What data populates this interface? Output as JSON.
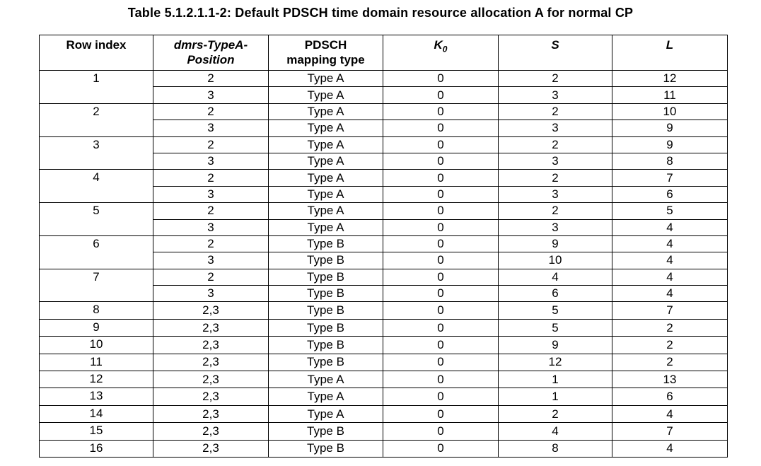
{
  "title": "Table 5.1.2.1.1-2: Default PDSCH time domain resource allocation A for normal CP",
  "headers": {
    "row_index": "Row index",
    "dmrs_line1": "dmrs-TypeA-",
    "dmrs_line2": "Position",
    "pdsch_line1": "PDSCH",
    "pdsch_line2": "mapping type",
    "k0": "K",
    "k0_sub": "0",
    "s": "S",
    "l": "L"
  },
  "rows": [
    {
      "index": "1",
      "entries": [
        {
          "dmrs": "2",
          "type": "Type A",
          "k0": "0",
          "s": "2",
          "l": "12"
        },
        {
          "dmrs": "3",
          "type": "Type A",
          "k0": "0",
          "s": "3",
          "l": "11"
        }
      ]
    },
    {
      "index": "2",
      "entries": [
        {
          "dmrs": "2",
          "type": "Type A",
          "k0": "0",
          "s": "2",
          "l": "10"
        },
        {
          "dmrs": "3",
          "type": "Type A",
          "k0": "0",
          "s": "3",
          "l": "9"
        }
      ]
    },
    {
      "index": "3",
      "entries": [
        {
          "dmrs": "2",
          "type": "Type A",
          "k0": "0",
          "s": "2",
          "l": "9"
        },
        {
          "dmrs": "3",
          "type": "Type A",
          "k0": "0",
          "s": "3",
          "l": "8"
        }
      ]
    },
    {
      "index": "4",
      "entries": [
        {
          "dmrs": "2",
          "type": "Type A",
          "k0": "0",
          "s": "2",
          "l": "7"
        },
        {
          "dmrs": "3",
          "type": "Type A",
          "k0": "0",
          "s": "3",
          "l": "6"
        }
      ]
    },
    {
      "index": "5",
      "entries": [
        {
          "dmrs": "2",
          "type": "Type A",
          "k0": "0",
          "s": "2",
          "l": "5"
        },
        {
          "dmrs": "3",
          "type": "Type A",
          "k0": "0",
          "s": "3",
          "l": "4"
        }
      ]
    },
    {
      "index": "6",
      "entries": [
        {
          "dmrs": "2",
          "type": "Type B",
          "k0": "0",
          "s": "9",
          "l": "4"
        },
        {
          "dmrs": "3",
          "type": "Type B",
          "k0": "0",
          "s": "10",
          "l": "4"
        }
      ]
    },
    {
      "index": "7",
      "entries": [
        {
          "dmrs": "2",
          "type": "Type B",
          "k0": "0",
          "s": "4",
          "l": "4"
        },
        {
          "dmrs": "3",
          "type": "Type B",
          "k0": "0",
          "s": "6",
          "l": "4"
        }
      ]
    },
    {
      "index": "8",
      "entries": [
        {
          "dmrs": "2,3",
          "type": "Type B",
          "k0": "0",
          "s": "5",
          "l": "7"
        }
      ]
    },
    {
      "index": "9",
      "entries": [
        {
          "dmrs": "2,3",
          "type": "Type B",
          "k0": "0",
          "s": "5",
          "l": "2"
        }
      ]
    },
    {
      "index": "10",
      "entries": [
        {
          "dmrs": "2,3",
          "type": "Type B",
          "k0": "0",
          "s": "9",
          "l": "2"
        }
      ]
    },
    {
      "index": "11",
      "entries": [
        {
          "dmrs": "2,3",
          "type": "Type B",
          "k0": "0",
          "s": "12",
          "l": "2"
        }
      ]
    },
    {
      "index": "12",
      "entries": [
        {
          "dmrs": "2,3",
          "type": "Type A",
          "k0": "0",
          "s": "1",
          "l": "13"
        }
      ]
    },
    {
      "index": "13",
      "entries": [
        {
          "dmrs": "2,3",
          "type": "Type A",
          "k0": "0",
          "s": "1",
          "l": "6"
        }
      ]
    },
    {
      "index": "14",
      "entries": [
        {
          "dmrs": "2,3",
          "type": "Type A",
          "k0": "0",
          "s": "2",
          "l": "4"
        }
      ]
    },
    {
      "index": "15",
      "entries": [
        {
          "dmrs": "2,3",
          "type": "Type B",
          "k0": "0",
          "s": "4",
          "l": "7"
        }
      ]
    },
    {
      "index": "16",
      "entries": [
        {
          "dmrs": "2,3",
          "type": "Type B",
          "k0": "0",
          "s": "8",
          "l": "4"
        }
      ]
    }
  ]
}
